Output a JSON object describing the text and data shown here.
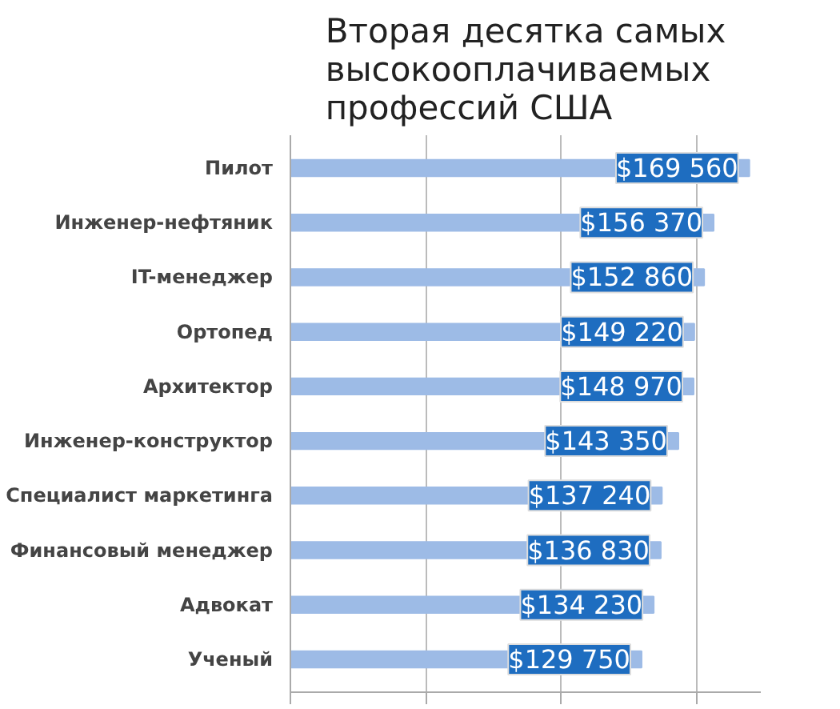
{
  "chart_data": {
    "type": "bar",
    "orientation": "horizontal",
    "title": "Вторая десятка самых высокооплачиваемых профессий США",
    "categories": [
      "Пилот",
      "Инженер-нефтяник",
      "IT-менеджер",
      "Ортопед",
      "Архитектор",
      "Инженер-конструктор",
      "Специалист маркетинга",
      "Финансовый менеджер",
      "Адвокат",
      "Ученый"
    ],
    "values": [
      169560,
      156370,
      152860,
      149220,
      148970,
      143350,
      137240,
      136830,
      134230,
      129750
    ],
    "value_labels": [
      "$169 560",
      "$156 370",
      "$152 860",
      "$149 220",
      "$148 970",
      "$143 350",
      "$137 240",
      "$136 830",
      "$134 230",
      "$129 750"
    ],
    "color": "#9dbbe6",
    "grid": "x",
    "tick_labels": "y"
  }
}
